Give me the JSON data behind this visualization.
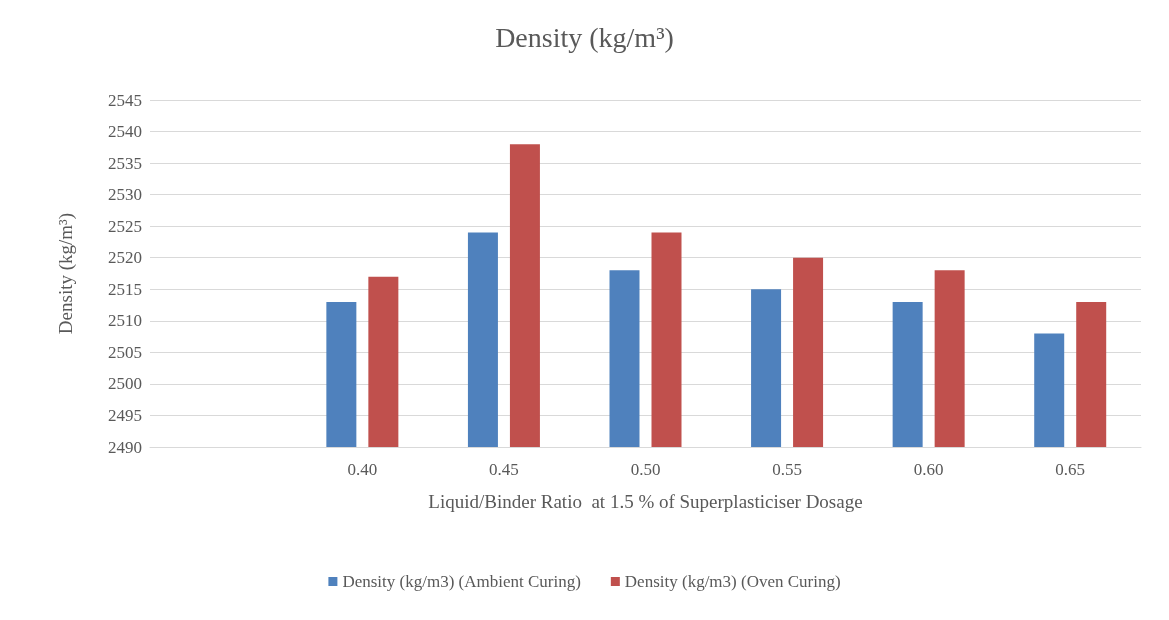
{
  "chart_data": {
    "type": "bar",
    "title": "Density (kg/m³)",
    "xlabel": "Liquid/Binder Ratio  at 1.5 % of Superplasticiser Dosage",
    "ylabel": "Density (kg/m³)",
    "categories": [
      null,
      "0.40",
      "0.45",
      "0.50",
      "0.55",
      "0.60",
      "0.65"
    ],
    "series": [
      {
        "name": "Density (kg/m3) (Ambient Curing)",
        "color": "#4f81bd",
        "values": [
          null,
          2513,
          2524,
          2518,
          2515,
          2513,
          2508
        ]
      },
      {
        "name": "Density (kg/m3) (Oven Curing)",
        "color": "#c0504d",
        "values": [
          null,
          2517,
          2538,
          2524,
          2520,
          2518,
          2513
        ]
      }
    ],
    "ylim": [
      2490,
      2545
    ],
    "yticks": [
      2490,
      2495,
      2500,
      2505,
      2510,
      2515,
      2520,
      2525,
      2530,
      2535,
      2540,
      2545
    ],
    "grid": "y",
    "legend": "bottom"
  }
}
